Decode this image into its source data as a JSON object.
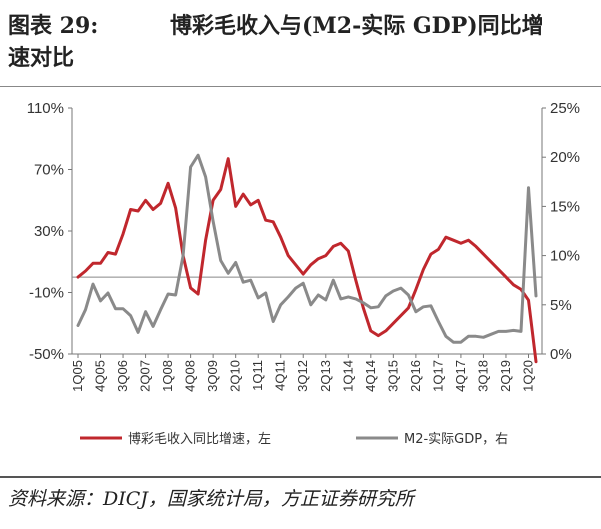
{
  "figure": {
    "number": "图表 29:",
    "title_line1": "博彩毛收入与(M2-实际 GDP)同比增",
    "title_line2": "速对比"
  },
  "source": "资料来源：DICJ，国家统计局，方正证券研究所",
  "chart_data": {
    "type": "line",
    "x": [
      "1Q05",
      "2Q05",
      "3Q05",
      "4Q05",
      "1Q06",
      "2Q06",
      "3Q06",
      "4Q06",
      "1Q07",
      "2Q07",
      "3Q07",
      "4Q07",
      "1Q08",
      "2Q08",
      "3Q08",
      "4Q08",
      "1Q09",
      "2Q09",
      "3Q09",
      "4Q09",
      "1Q10",
      "2Q10",
      "3Q10",
      "4Q10",
      "1Q11",
      "2Q11",
      "3Q11",
      "4Q11",
      "1Q12",
      "2Q12",
      "3Q12",
      "4Q12",
      "1Q13",
      "2Q13",
      "3Q13",
      "4Q13",
      "1Q14",
      "2Q14",
      "3Q14",
      "4Q14",
      "1Q15",
      "2Q15",
      "3Q15",
      "4Q15",
      "1Q16",
      "2Q16",
      "3Q16",
      "4Q16",
      "1Q17",
      "2Q17",
      "3Q17",
      "4Q17",
      "1Q18",
      "2Q18",
      "3Q18",
      "4Q18",
      "1Q19",
      "2Q19",
      "3Q19",
      "4Q19",
      "1Q20",
      "2Q20"
    ],
    "x_tick_labels": [
      "1Q05",
      "4Q05",
      "3Q06",
      "2Q07",
      "1Q08",
      "4Q08",
      "3Q09",
      "2Q10",
      "1Q11",
      "4Q11",
      "3Q12",
      "2Q13",
      "1Q14",
      "4Q14",
      "3Q15",
      "2Q16",
      "1Q17",
      "4Q17",
      "3Q18",
      "2Q19",
      "1Q20"
    ],
    "y_left": {
      "ticks": [
        "110%",
        "70%",
        "30%",
        "-10%",
        "-50%"
      ],
      "range": [
        -50,
        110
      ]
    },
    "y_right": {
      "ticks": [
        "25%",
        "20%",
        "15%",
        "10%",
        "5%",
        "0%"
      ],
      "range": [
        0,
        25
      ]
    },
    "series": [
      {
        "name": "博彩毛收入同比增速，左",
        "axis": "left",
        "color": "#c0272d",
        "values": [
          0,
          4,
          9,
          9,
          16,
          15,
          28,
          44,
          43,
          50,
          44,
          48,
          61,
          45,
          14,
          -7,
          -11,
          24,
          50,
          57,
          77,
          46,
          54,
          47,
          50,
          37,
          36,
          26,
          14,
          8,
          2,
          8,
          12,
          14,
          20,
          22,
          17,
          -2,
          -20,
          -35,
          -38,
          -35,
          -30,
          -25,
          -20,
          -8,
          5,
          15,
          18,
          26,
          24,
          22,
          24,
          20,
          15,
          10,
          5,
          0,
          -5,
          -8,
          -15,
          -55
        ]
      },
      {
        "name": "M2-实际GDP，右",
        "axis": "right",
        "color": "#8a8a8a",
        "values": [
          2.9,
          4.5,
          7.1,
          5.4,
          6.2,
          4.6,
          4.6,
          3.9,
          2.2,
          4.3,
          2.8,
          4.5,
          6.1,
          6.0,
          10.0,
          19.0,
          20.2,
          18.0,
          13.5,
          9.5,
          8.2,
          9.3,
          7.3,
          7.5,
          5.7,
          6.2,
          3.3,
          5.0,
          5.8,
          6.7,
          7.2,
          5.0,
          6.0,
          5.5,
          7.5,
          5.6,
          5.8,
          5.6,
          5.2,
          4.7,
          4.8,
          5.9,
          6.4,
          6.7,
          6.0,
          4.3,
          4.8,
          4.9,
          3.3,
          1.8,
          1.2,
          1.2,
          1.8,
          1.8,
          1.7,
          2.0,
          2.3,
          2.3,
          2.4,
          2.3,
          16.9,
          5.9
        ]
      }
    ],
    "reference_line": {
      "axis": "left",
      "value": 0
    },
    "legend": {
      "position": "bottom",
      "entries": [
        "博彩毛收入同比增速，左",
        "M2-实际GDP，右"
      ]
    },
    "grid": false
  }
}
